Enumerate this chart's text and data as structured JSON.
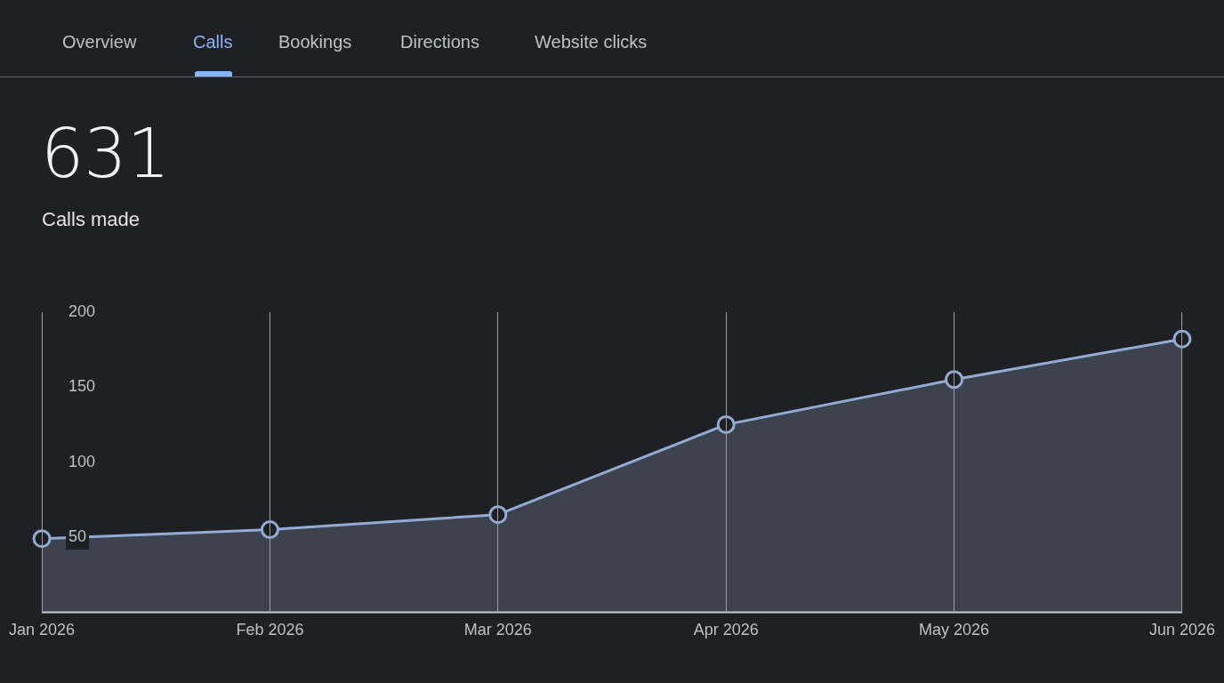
{
  "chart_data": {
    "type": "area",
    "title": "631",
    "subtitle": "Calls made",
    "annotations": [
      "Overview",
      "Calls",
      "Bookings",
      "Directions",
      "Website clicks"
    ],
    "categories": [
      "Jan 2026",
      "Feb 2026",
      "Mar 2026",
      "Apr 2026",
      "May 2026",
      "Jun 2026"
    ],
    "series": [
      {
        "color": "#94acd4",
        "values": [
          49,
          55,
          65,
          125,
          155,
          182
        ]
      }
    ],
    "ylim": [
      0,
      200
    ],
    "yticks": [
      50,
      100,
      150,
      200
    ],
    "grid": "x",
    "marker": "circle",
    "line_style": "solid",
    "legend": false
  }
}
